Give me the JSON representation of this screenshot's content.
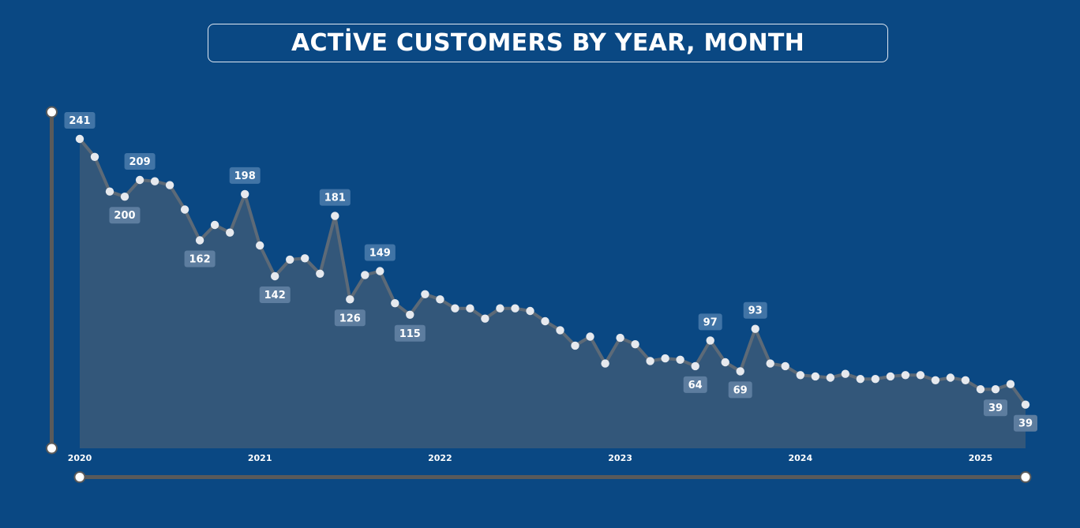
{
  "title": "ACTİVE CUSTOMERS BY YEAR, MONTH",
  "colors": {
    "background": "#0a4883",
    "area_fill": "#33577a",
    "line": "#5d6a77",
    "marker": "#e6e9ee",
    "label_bg_above": "#4174a6",
    "label_bg_below": "#5d7d9f",
    "slider": "#5a5a5a"
  },
  "chart_data": {
    "type": "area",
    "title": "ACTİVE CUSTOMERS BY YEAR, MONTH",
    "xlabel": "",
    "ylabel": "",
    "ylim": [
      0,
      241
    ],
    "x_ticks": [
      "2020",
      "2021",
      "2022",
      "2023",
      "2024",
      "2025"
    ],
    "x": [
      "2020-01",
      "2020-02",
      "2020-03",
      "2020-04",
      "2020-05",
      "2020-06",
      "2020-07",
      "2020-08",
      "2020-09",
      "2020-10",
      "2020-11",
      "2020-12",
      "2021-01",
      "2021-02",
      "2021-03",
      "2021-04",
      "2021-05",
      "2021-06",
      "2021-07",
      "2021-08",
      "2021-09",
      "2021-10",
      "2021-11",
      "2021-12",
      "2022-01",
      "2022-02",
      "2022-03",
      "2022-04",
      "2022-05",
      "2022-06",
      "2022-07",
      "2022-08",
      "2022-09",
      "2022-10",
      "2022-11",
      "2022-12",
      "2023-01",
      "2023-02",
      "2023-03",
      "2023-04",
      "2023-05",
      "2023-06",
      "2023-07",
      "2023-08",
      "2023-09",
      "2023-10",
      "2023-11",
      "2023-12",
      "2024-01",
      "2024-02",
      "2024-03",
      "2024-04",
      "2024-05",
      "2024-06",
      "2024-07",
      "2024-08",
      "2024-09",
      "2024-10",
      "2024-11",
      "2024-12",
      "2025-01",
      "2025-02",
      "2025-03",
      "2025-04"
    ],
    "values": [
      241,
      227,
      200,
      196,
      209,
      208,
      205,
      186,
      162,
      174,
      168,
      198,
      158,
      134,
      147,
      148,
      136,
      181,
      116,
      135,
      138,
      113,
      104,
      120,
      116,
      109,
      109,
      101,
      109,
      109,
      107,
      99,
      92,
      80,
      87,
      66,
      86,
      81,
      68,
      70,
      69,
      64,
      84,
      67,
      60,
      93,
      66,
      64,
      57,
      56,
      55,
      58,
      54,
      54,
      56,
      57,
      57,
      53,
      55,
      53,
      46,
      46,
      50,
      34
    ],
    "data_labels": [
      {
        "index": 0,
        "text": "241",
        "position": "above"
      },
      {
        "index": 3,
        "text": "200",
        "position": "below"
      },
      {
        "index": 4,
        "text": "209",
        "position": "above"
      },
      {
        "index": 8,
        "text": "162",
        "position": "below"
      },
      {
        "index": 11,
        "text": "198",
        "position": "above"
      },
      {
        "index": 13,
        "text": "142",
        "position": "below"
      },
      {
        "index": 17,
        "text": "181",
        "position": "above"
      },
      {
        "index": 18,
        "text": "126",
        "position": "below"
      },
      {
        "index": 20,
        "text": "149",
        "position": "above"
      },
      {
        "index": 22,
        "text": "115",
        "position": "below"
      },
      {
        "index": 41,
        "text": "64",
        "position": "below"
      },
      {
        "index": 42,
        "text": "97",
        "position": "above"
      },
      {
        "index": 44,
        "text": "69",
        "position": "below"
      },
      {
        "index": 45,
        "text": "93",
        "position": "above"
      },
      {
        "index": 61,
        "text": "39",
        "position": "below"
      },
      {
        "index": 63,
        "text": "39",
        "position": "below"
      }
    ],
    "grid": false,
    "legend": "none"
  }
}
